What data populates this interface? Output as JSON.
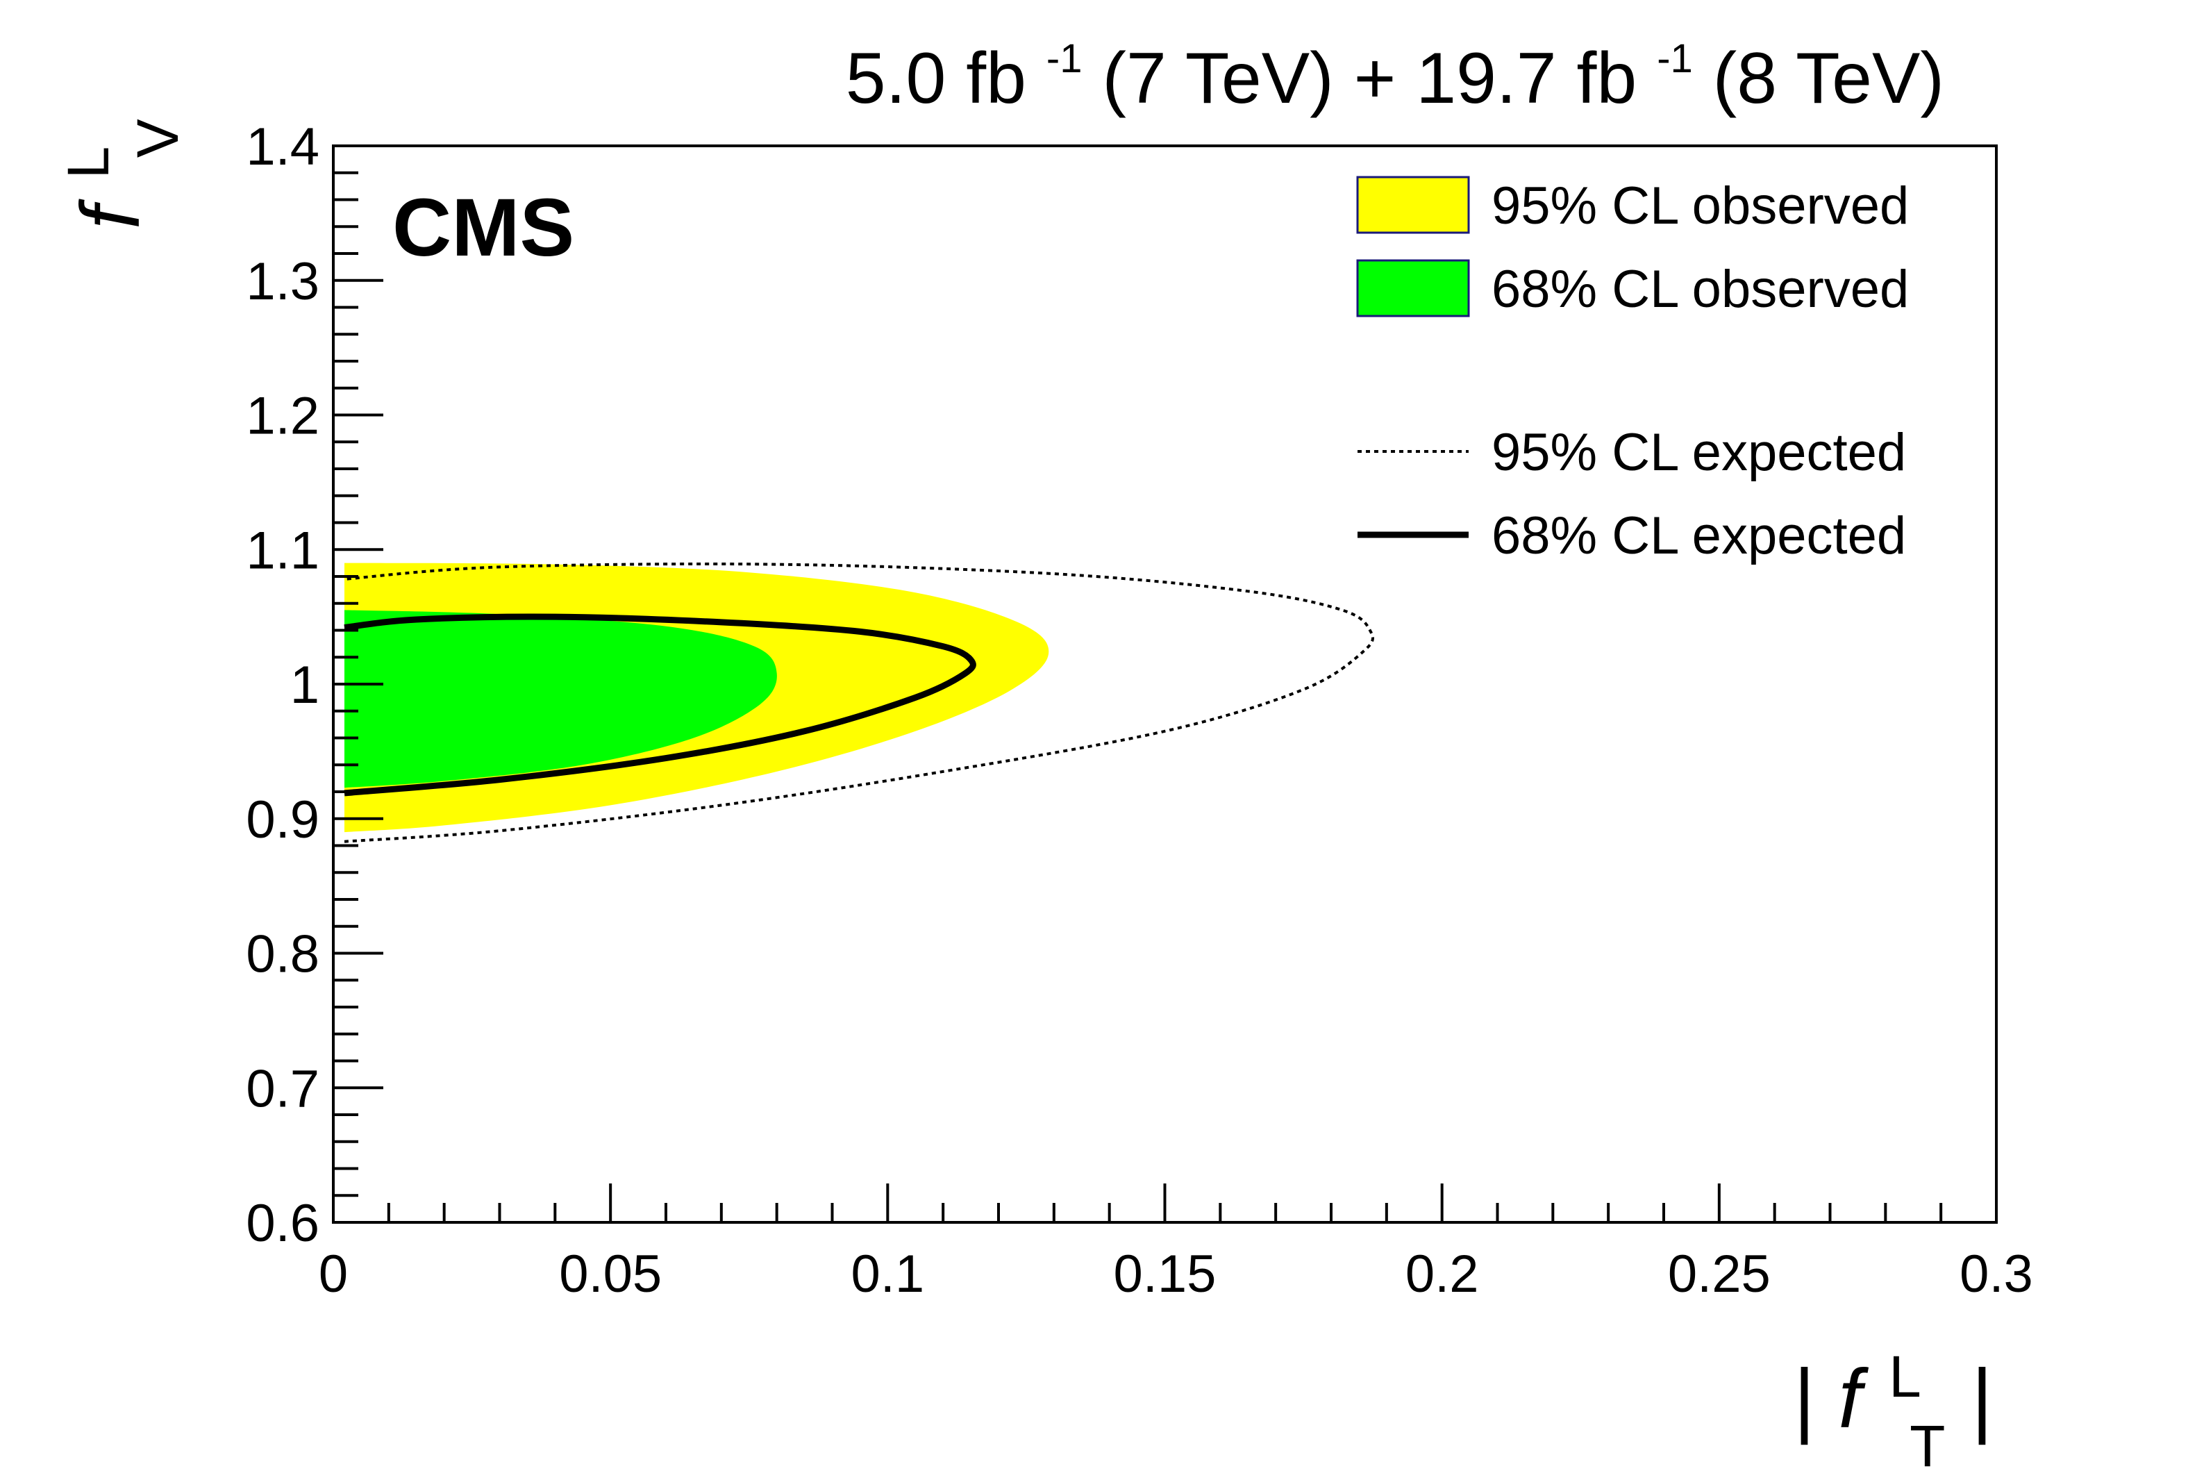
{
  "chart_data": {
    "type": "contour",
    "experiment_label": "CMS",
    "lumi_label": {
      "part1": "5.0 fb",
      "sup1": "-1",
      "part2": " (7 TeV) + 19.7 fb",
      "sup2": "-1",
      "part3": " (8 TeV)"
    },
    "xlabel": {
      "open_bar": "|",
      "symbol": "f",
      "superscript": "L",
      "subscript": "T",
      "close_bar": "|"
    },
    "ylabel": {
      "symbol": "f",
      "superscript": "L",
      "subscript": "V"
    },
    "xlim": [
      0,
      0.3
    ],
    "ylim": [
      0.6,
      1.4
    ],
    "xticks": [
      0,
      0.05,
      0.1,
      0.15,
      0.2,
      0.25,
      0.3
    ],
    "xtick_labels": [
      "0",
      "0.05",
      "0.1",
      "0.15",
      "0.2",
      "0.25",
      "0.3"
    ],
    "yticks": [
      0.6,
      0.7,
      0.8,
      0.9,
      1.0,
      1.1,
      1.2,
      1.3,
      1.4
    ],
    "ytick_labels": [
      "0.6",
      "0.7",
      "0.8",
      "0.9",
      "1",
      "1.1",
      "1.2",
      "1.3",
      "1.4"
    ],
    "legend_position": "top-right",
    "legend": [
      {
        "label": "95% CL observed",
        "style": "fill",
        "color": "#ffff00"
      },
      {
        "label": "68% CL observed",
        "style": "fill",
        "color": "#00ff00"
      },
      {
        "label": "95% CL expected",
        "style": "dotted",
        "color": "#000000"
      },
      {
        "label": "68% CL expected",
        "style": "solid",
        "color": "#000000"
      }
    ],
    "series": [
      {
        "name": "95% CL observed",
        "kind": "filled-region",
        "color": "#ffff00",
        "points": [
          [
            0.002,
            0.89
          ],
          [
            0.02,
            0.895
          ],
          [
            0.05,
            0.91
          ],
          [
            0.08,
            0.935
          ],
          [
            0.105,
            0.965
          ],
          [
            0.122,
            0.995
          ],
          [
            0.129,
            1.022
          ],
          [
            0.124,
            1.045
          ],
          [
            0.105,
            1.068
          ],
          [
            0.075,
            1.083
          ],
          [
            0.04,
            1.089
          ],
          [
            0.002,
            1.09
          ]
        ]
      },
      {
        "name": "68% CL observed",
        "kind": "filled-region",
        "color": "#00ff00",
        "points": [
          [
            0.002,
            0.923
          ],
          [
            0.02,
            0.928
          ],
          [
            0.045,
            0.94
          ],
          [
            0.065,
            0.96
          ],
          [
            0.077,
            0.985
          ],
          [
            0.08,
            1.008
          ],
          [
            0.076,
            1.028
          ],
          [
            0.06,
            1.043
          ],
          [
            0.03,
            1.052
          ],
          [
            0.002,
            1.055
          ]
        ]
      },
      {
        "name": "95% CL expected",
        "kind": "contour-line",
        "style": "dotted",
        "color": "#000000",
        "points": [
          [
            0.002,
            0.883
          ],
          [
            0.03,
            0.891
          ],
          [
            0.07,
            0.91
          ],
          [
            0.11,
            0.935
          ],
          [
            0.15,
            0.965
          ],
          [
            0.175,
            0.996
          ],
          [
            0.186,
            1.025
          ],
          [
            0.187,
            1.04
          ],
          [
            0.182,
            1.055
          ],
          [
            0.165,
            1.069
          ],
          [
            0.13,
            1.082
          ],
          [
            0.08,
            1.089
          ],
          [
            0.03,
            1.087
          ],
          [
            0.002,
            1.078
          ]
        ]
      },
      {
        "name": "68% CL expected",
        "kind": "contour-line",
        "style": "solid",
        "color": "#000000",
        "points": [
          [
            0.002,
            0.919
          ],
          [
            0.03,
            0.929
          ],
          [
            0.06,
            0.945
          ],
          [
            0.085,
            0.965
          ],
          [
            0.105,
            0.99
          ],
          [
            0.114,
            1.008
          ],
          [
            0.115,
            1.018
          ],
          [
            0.11,
            1.028
          ],
          [
            0.095,
            1.039
          ],
          [
            0.07,
            1.046
          ],
          [
            0.04,
            1.05
          ],
          [
            0.015,
            1.048
          ],
          [
            0.002,
            1.042
          ]
        ]
      }
    ]
  }
}
